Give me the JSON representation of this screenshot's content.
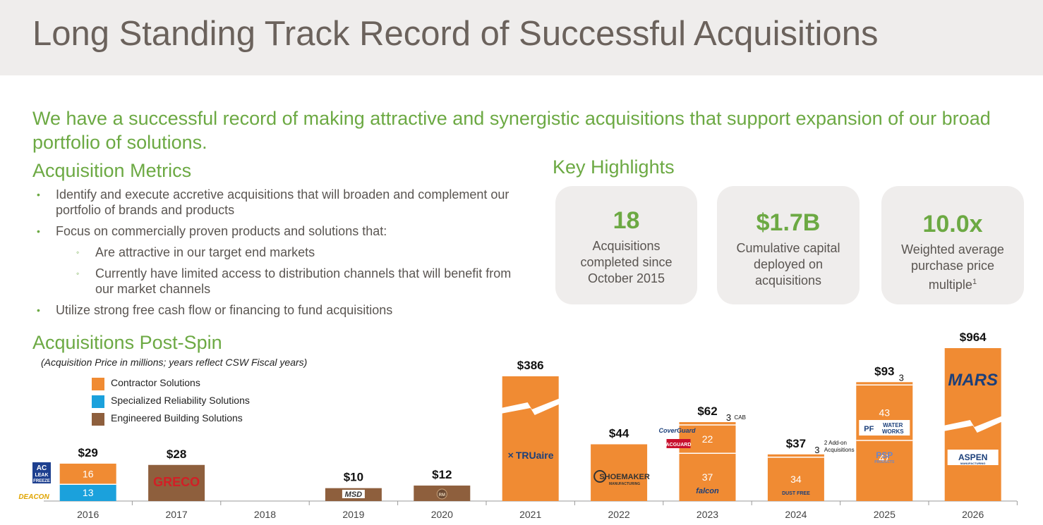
{
  "title": "Long Standing Track Record of Successful Acquisitions",
  "intro": "We have a successful record of making attractive and synergistic acquisitions that support expansion of our broad portfolio of solutions.",
  "metrics": {
    "heading": "Acquisition Metrics",
    "bullet_1": "Identify and execute accretive acquisitions that will broaden and complement our portfolio of brands and products",
    "bullet_2": "Focus on commercially proven products and solutions that:",
    "sub_1": "Are attractive in our target end markets",
    "sub_2": "Currently have limited access to distribution channels that will benefit from our market channels",
    "bullet_3": "Utilize strong free cash flow or financing to fund acquisitions",
    "bullet_symbol": "•",
    "sub_symbol": "◦"
  },
  "highlights": {
    "heading": "Key Highlights",
    "card_1": {
      "value": "18",
      "line_1": "Acquisitions",
      "line_2": "completed since",
      "line_3": "October 2015"
    },
    "card_2": {
      "value": "$1.7B",
      "line_1": "Cumulative capital",
      "line_2": "deployed on",
      "line_3": "acquisitions"
    },
    "card_3": {
      "value": "10.0x",
      "line_1": "Weighted average",
      "line_2": "purchase price",
      "line_3": "multiple",
      "footnote": "1"
    }
  },
  "chart_heading": "Acquisitions Post-Spin",
  "chart_subtitle": "(Acquisition Price in millions; years reflect CSW Fiscal years)",
  "colors": {
    "contractor": "#f08b33",
    "specialized": "#1ba1dc",
    "engineered": "#8e5f3d",
    "green": "#6ca943",
    "gray_text": "#5a5551"
  },
  "chart_data": {
    "type": "bar",
    "stacked": true,
    "categories": [
      "2016",
      "2017",
      "2018",
      "2019",
      "2020",
      "2021",
      "2022",
      "2023",
      "2024",
      "2025",
      "2026"
    ],
    "totals": [
      "$29",
      "$28",
      "",
      "$10",
      "$12",
      "$386",
      "$44",
      "$62",
      "$37",
      "$93",
      "$964"
    ],
    "series": [
      {
        "name": "Contractor Solutions",
        "color": "#f08b33",
        "values": [
          16,
          0,
          0,
          0,
          0,
          386,
          44,
          62,
          37,
          93,
          964
        ]
      },
      {
        "name": "Specialized Reliability Solutions",
        "color": "#1ba1dc",
        "values": [
          13,
          0,
          0,
          0,
          0,
          0,
          0,
          0,
          0,
          0,
          0
        ]
      },
      {
        "name": "Engineered Building Solutions",
        "color": "#8e5f3d",
        "values": [
          0,
          28,
          0,
          10,
          12,
          0,
          0,
          0,
          0,
          0,
          0
        ]
      }
    ],
    "segments": [
      {
        "year": "2016",
        "series": "Specialized Reliability Solutions",
        "value": 13,
        "label": "13"
      },
      {
        "year": "2016",
        "series": "Contractor Solutions",
        "value": 16,
        "label": "16"
      },
      {
        "year": "2017",
        "series": "Engineered Building Solutions",
        "value": 28,
        "label": ""
      },
      {
        "year": "2019",
        "series": "Engineered Building Solutions",
        "value": 10,
        "label": ""
      },
      {
        "year": "2020",
        "series": "Engineered Building Solutions",
        "value": 12,
        "label": ""
      },
      {
        "year": "2021",
        "series": "Contractor Solutions",
        "value": 386,
        "label": ""
      },
      {
        "year": "2022",
        "series": "Contractor Solutions",
        "value": 44,
        "label": ""
      },
      {
        "year": "2023",
        "series": "Contractor Solutions",
        "value": 37,
        "label": "37"
      },
      {
        "year": "2023",
        "series": "Contractor Solutions",
        "value": 22,
        "label": "22"
      },
      {
        "year": "2023",
        "series": "Contractor Solutions",
        "value": 3,
        "label": ""
      },
      {
        "year": "2024",
        "series": "Contractor Solutions",
        "value": 34,
        "label": "34"
      },
      {
        "year": "2024",
        "series": "Contractor Solutions",
        "value": 3,
        "label": ""
      },
      {
        "year": "2025",
        "series": "Contractor Solutions",
        "value": 47,
        "label": "47"
      },
      {
        "year": "2025",
        "series": "Contractor Solutions",
        "value": 43,
        "label": "43"
      },
      {
        "year": "2025",
        "series": "Contractor Solutions",
        "value": 3,
        "label": ""
      },
      {
        "year": "2026",
        "series": "Contractor Solutions",
        "value": 964,
        "label": ""
      }
    ],
    "axis_breaks": [
      "2021",
      "2026"
    ],
    "annotations": [
      {
        "year": "2023",
        "value": "3",
        "note": "CAB"
      },
      {
        "year": "2024",
        "value": "3",
        "note_1": "2 Add-on",
        "note_2": "Acquisitions"
      },
      {
        "year": "2025",
        "value": "3"
      }
    ],
    "logos": [
      {
        "year": "2016",
        "name": "AC LEAK FREEZE",
        "line_1": "AC",
        "line_2": "LEAK",
        "line_3": "FREEZE"
      },
      {
        "year": "2016",
        "name": "DEACON"
      },
      {
        "year": "2017",
        "name": "GRECO"
      },
      {
        "year": "2019",
        "name": "MSD"
      },
      {
        "year": "2020",
        "name": "RM"
      },
      {
        "year": "2021",
        "name": "TRUaire"
      },
      {
        "year": "2022",
        "name": "SHOEMAKER",
        "sub": "MANUFACTURING"
      },
      {
        "year": "2023",
        "name": "CoverGuard"
      },
      {
        "year": "2023",
        "name": "ACGUARD"
      },
      {
        "year": "2023",
        "name": "falcon"
      },
      {
        "year": "2024",
        "name": "DUST FREE"
      },
      {
        "year": "2025",
        "name": "PF WATER WORKS",
        "line_1": "PF",
        "line_2": "WATER",
        "line_3": "WORKS"
      },
      {
        "year": "2025",
        "name": "PSP",
        "sub": "PRODUCTS"
      },
      {
        "year": "2026",
        "name": "MARS"
      },
      {
        "year": "2026",
        "name": "ASPEN",
        "sub": "MANUFACTURING"
      }
    ]
  }
}
